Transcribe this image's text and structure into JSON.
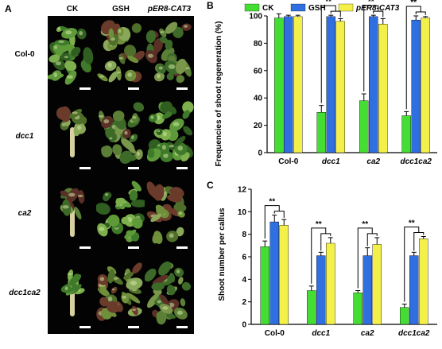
{
  "panel_a": {
    "letter": "A",
    "columns": [
      "CK",
      "GSH",
      "pER8-CAT3"
    ],
    "rows": [
      "Col-0",
      "dcc1",
      "ca2",
      "dcc1ca2"
    ]
  },
  "colors": {
    "CK": "#44dd33",
    "GSH": "#2f6fe0",
    "pER8-CAT3": "#f4f04a"
  },
  "chart_data": [
    {
      "panel": "B",
      "type": "bar",
      "ylabel": "Frequencies of shoot regeneration (%)",
      "xlabel": "",
      "categories": [
        "Col-0",
        "dcc1",
        "ca2",
        "dcc1ca2"
      ],
      "italic_categories": [
        false,
        true,
        true,
        true
      ],
      "ylim": [
        0,
        100
      ],
      "yticks": [
        0,
        20,
        40,
        60,
        80,
        100
      ],
      "legend_position": "top",
      "series": [
        {
          "name": "CK",
          "values": [
            98.5,
            29.5,
            38,
            27
          ],
          "errors": [
            3,
            5,
            5,
            3
          ]
        },
        {
          "name": "GSH",
          "values": [
            99.5,
            99.5,
            99.5,
            97
          ],
          "errors": [
            1,
            1,
            1,
            3
          ]
        },
        {
          "name": "pER8-CAT3",
          "values": [
            99.5,
            96,
            94,
            98.5
          ],
          "errors": [
            1,
            2,
            4,
            1
          ]
        }
      ],
      "significance": [
        {
          "category": 1,
          "label": "**"
        },
        {
          "category": 2,
          "label": "**"
        },
        {
          "category": 3,
          "label": "**"
        }
      ]
    },
    {
      "panel": "C",
      "type": "bar",
      "ylabel": "Shoot number per callus",
      "xlabel": "",
      "categories": [
        "Col-0",
        "dcc1",
        "ca2",
        "dcc1ca2"
      ],
      "italic_categories": [
        false,
        true,
        true,
        true
      ],
      "ylim": [
        0,
        12
      ],
      "yticks": [
        0,
        2,
        4,
        6,
        8,
        10,
        12
      ],
      "series": [
        {
          "name": "CK",
          "values": [
            6.9,
            3.0,
            2.8,
            1.5
          ],
          "errors": [
            0.5,
            0.4,
            0.2,
            0.3
          ]
        },
        {
          "name": "GSH",
          "values": [
            9.1,
            6.1,
            6.1,
            6.1
          ],
          "errors": [
            0.6,
            0.3,
            0.7,
            0.3
          ]
        },
        {
          "name": "pER8-CAT3",
          "values": [
            8.8,
            7.2,
            7.1,
            7.6
          ],
          "errors": [
            0.5,
            0.5,
            0.6,
            0.2
          ]
        }
      ],
      "significance": [
        {
          "category": 0,
          "label": "**"
        },
        {
          "category": 1,
          "label": "**"
        },
        {
          "category": 2,
          "label": "**"
        },
        {
          "category": 3,
          "label": "**"
        }
      ]
    }
  ]
}
